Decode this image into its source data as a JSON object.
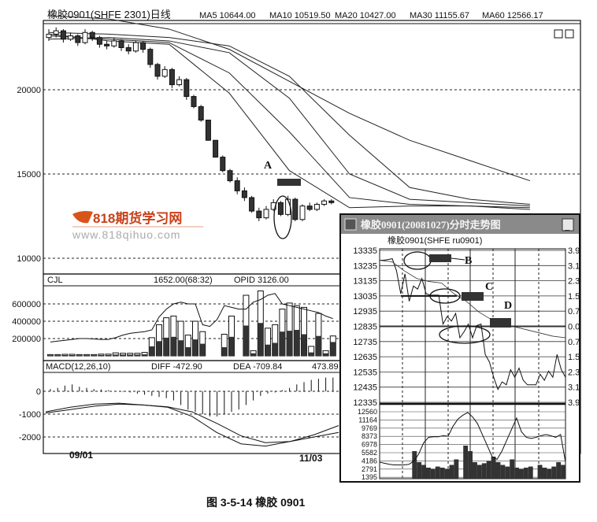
{
  "main": {
    "title": "橡胶0901(SHFE 2301)日线",
    "ma_labels": [
      "MA5 10644.00",
      "MA10 10519.50",
      "MA20 10427.00",
      "MA30 11155.67",
      "MA60  12566.17"
    ],
    "price_ticks": [
      20000,
      15000,
      10000
    ],
    "candles": [
      [
        23100,
        23600,
        22900,
        23300
      ],
      [
        23300,
        23700,
        23100,
        23500
      ],
      [
        23500,
        23600,
        22800,
        23000
      ],
      [
        23000,
        23400,
        22900,
        23200
      ],
      [
        23200,
        23300,
        22600,
        22800
      ],
      [
        22800,
        23600,
        22700,
        23400
      ],
      [
        23400,
        23500,
        22900,
        23100
      ],
      [
        23100,
        23200,
        22500,
        22700
      ],
      [
        22700,
        22900,
        22400,
        22600
      ],
      [
        22600,
        23100,
        22500,
        22900
      ],
      [
        22900,
        23000,
        22300,
        22500
      ],
      [
        22500,
        22700,
        22100,
        22300
      ],
      [
        22300,
        22900,
        22200,
        22800
      ],
      [
        22800,
        22900,
        22200,
        22400
      ],
      [
        22400,
        22500,
        21300,
        21500
      ],
      [
        21500,
        21600,
        20600,
        20800
      ],
      [
        20800,
        21400,
        20700,
        21200
      ],
      [
        21200,
        21300,
        20100,
        20300
      ],
      [
        20300,
        20800,
        20200,
        20600
      ],
      [
        20600,
        20700,
        19400,
        19600
      ],
      [
        19600,
        19700,
        18900,
        19000
      ],
      [
        19000,
        19100,
        18100,
        18200
      ],
      [
        18200,
        18200,
        17000,
        17000
      ],
      [
        17000,
        17000,
        16000,
        16000
      ],
      [
        16000,
        16100,
        15100,
        15200
      ],
      [
        15200,
        15300,
        14500,
        14600
      ],
      [
        14600,
        14800,
        13800,
        14000
      ],
      [
        14000,
        14200,
        13400,
        13600
      ],
      [
        13600,
        13700,
        12700,
        12800
      ],
      [
        12800,
        13000,
        12200,
        12400
      ],
      [
        12400,
        13100,
        12300,
        12900
      ],
      [
        12900,
        13500,
        12800,
        13300
      ],
      [
        13300,
        13400,
        12500,
        12600
      ],
      [
        12600,
        13700,
        12500,
        13500
      ],
      [
        13500,
        13600,
        12200,
        12300
      ],
      [
        12300,
        13200,
        12200,
        13100
      ],
      [
        13100,
        13300,
        12800,
        12900
      ],
      [
        12900,
        13300,
        12800,
        13200
      ],
      [
        13200,
        13500,
        13100,
        13400
      ],
      [
        13400,
        13500,
        13200,
        13300
      ]
    ],
    "ma_series": [
      {
        "name": "MA5",
        "values": [
          23300,
          22900,
          22700,
          19800,
          15200,
          13000,
          13100,
          13100,
          12900,
          12600
        ]
      },
      {
        "name": "MA10",
        "values": [
          23200,
          23000,
          22800,
          21000,
          17500,
          13600,
          13200,
          13100,
          13000,
          12700
        ]
      },
      {
        "name": "MA20",
        "values": [
          23000,
          23100,
          22900,
          22200,
          19500,
          15000,
          13500,
          13300,
          13100,
          12800
        ]
      },
      {
        "name": "MA30",
        "values": [
          23400,
          23300,
          23100,
          22600,
          20800,
          17300,
          14200,
          13500,
          13200,
          12900
        ]
      },
      {
        "name": "MA60",
        "values": [
          24400,
          24200,
          23600,
          22400,
          20500,
          18600,
          17000,
          15800,
          14600,
          13500
        ]
      }
    ],
    "annotation_A": "A"
  },
  "volume": {
    "label": "CJL",
    "value_text": "1652.00(68:32)",
    "oi_text": "OPID  3126.00",
    "ticks": [
      "600000",
      "400000",
      "200000"
    ],
    "tick_values": [
      600000,
      400000,
      200000
    ],
    "bars": [
      [
        15000,
        8000
      ],
      [
        15000,
        8000
      ],
      [
        18000,
        9000
      ],
      [
        18000,
        9000
      ],
      [
        15000,
        8000
      ],
      [
        15000,
        8000
      ],
      [
        15000,
        8000
      ],
      [
        20000,
        10000
      ],
      [
        20000,
        10000
      ],
      [
        35000,
        15000
      ],
      [
        30000,
        15000
      ],
      [
        30000,
        15000
      ],
      [
        30000,
        15000
      ],
      [
        40000,
        18000
      ],
      [
        210000,
        110000
      ],
      [
        360000,
        170000
      ],
      [
        440000,
        210000
      ],
      [
        460000,
        220000
      ],
      [
        400000,
        180000
      ],
      [
        240000,
        100000
      ],
      [
        400000,
        190000
      ],
      [
        280000,
        140000
      ],
      [
        0,
        0
      ],
      [
        0,
        0
      ],
      [
        250000,
        100000
      ],
      [
        460000,
        220000
      ],
      [
        0,
        0
      ],
      [
        700000,
        350000
      ],
      [
        60000,
        30000
      ],
      [
        750000,
        380000
      ],
      [
        320000,
        130000
      ],
      [
        360000,
        150000
      ],
      [
        540000,
        280000
      ],
      [
        610000,
        290000
      ],
      [
        580000,
        300000
      ],
      [
        560000,
        250000
      ],
      [
        110000,
        40000
      ],
      [
        490000,
        230000
      ],
      [
        60000,
        30000
      ],
      [
        230000,
        160000
      ]
    ],
    "oi_line": [
      160000,
      170000,
      180000,
      190000,
      200000,
      200000,
      195000,
      190000,
      190000,
      210000,
      240000,
      260000,
      270000,
      280000,
      300000,
      450000,
      540000,
      600000,
      620000,
      600000,
      600000,
      360000,
      340000,
      420000,
      580000,
      560000,
      540000,
      540000,
      620000,
      650000,
      700000,
      720000,
      600000,
      580000,
      560000,
      540000,
      520000,
      500000,
      460000,
      430000
    ]
  },
  "macd": {
    "label": "MACD(12,26,10)",
    "diff_text": "DIFF  -472.90",
    "dea_text": "DEA  -709.84",
    "macd_text": "473.89",
    "ticks": [
      "0",
      "-1000",
      "-2000"
    ],
    "tick_values": [
      0,
      -1000,
      -2000
    ],
    "diff": [
      -900,
      -700,
      -560,
      -520,
      -600,
      -700,
      -1100,
      -1800,
      -2300,
      -2400,
      -2200,
      -1900,
      -1500
    ],
    "dea": [
      -950,
      -800,
      -650,
      -560,
      -600,
      -680,
      -900,
      -1400,
      -1950,
      -2250,
      -2200,
      -2000,
      -1800
    ],
    "hist": [
      100,
      150,
      250,
      300,
      200,
      150,
      100,
      80,
      50,
      20,
      -20,
      -50,
      -100,
      -150,
      -200,
      -250,
      -300,
      -400,
      -600,
      -800,
      -900,
      -1000,
      -1100,
      -1100,
      -1000,
      -900,
      -800,
      -600,
      -400,
      -200,
      -100,
      -50,
      50,
      150,
      300,
      400,
      500,
      550,
      600,
      600
    ]
  },
  "dates": [
    "09/01",
    "11/03"
  ],
  "inset": {
    "window_title": "橡胶0901(20081027)分时走势图",
    "minimize_label": "_",
    "subtitle": "橡胶0901(SHFE ru0901)",
    "price_ticks": [
      "13335",
      "13235",
      "13135",
      "13035",
      "12935",
      "12835",
      "12735",
      "12635",
      "12535",
      "12435",
      "12335"
    ],
    "price_tick_values": [
      13335,
      13235,
      13135,
      13035,
      12935,
      12835,
      12735,
      12635,
      12535,
      12435,
      12335
    ],
    "pct_ticks": [
      "3.9",
      "3.1",
      "2.3",
      "1.5",
      "0.7",
      "0.0",
      "0.7",
      "1.5",
      "2.3",
      "3.1",
      "3.9"
    ],
    "volume_ticks": [
      "12560",
      "11164",
      "9769",
      "8373",
      "6978",
      "5582",
      "4186",
      "2791",
      "1395"
    ],
    "price": [
      13270,
      13270,
      13275,
      13280,
      13200,
      13050,
      13180,
      13000,
      13100,
      13080,
      13150,
      13050,
      13040,
      13040,
      13040,
      12850,
      12900,
      12870,
      12920,
      12760,
      12800,
      12850,
      12760,
      12840,
      12850,
      12650,
      12600,
      12500,
      12420,
      12470,
      12450,
      12550,
      12500,
      12560,
      12480,
      12450,
      12450,
      12450,
      12520,
      12480,
      12540,
      12500,
      12650,
      12550,
      12500
    ],
    "avg": [
      13270,
      13260,
      13200,
      13150,
      13130,
      13120,
      13050,
      13000,
      12930,
      12880,
      12840,
      12830,
      12810,
      12790,
      12770,
      12760
    ],
    "vol_bars": [
      0,
      0,
      0,
      0,
      0,
      0,
      0,
      5000,
      3000,
      2500,
      2000,
      1800,
      2200,
      2000,
      1800,
      2500,
      3500,
      0,
      6000,
      5000,
      3000,
      2500,
      2800,
      3200,
      4000,
      3000,
      2500,
      2200,
      3500,
      2000,
      1800,
      2000,
      2200,
      0,
      2500,
      2000,
      1800,
      2200,
      3000,
      2500
    ],
    "vol_line": [
      3000,
      2800,
      2600,
      2500,
      2500,
      2500,
      2600,
      3200,
      4500,
      6500,
      7500,
      7600,
      7600,
      7800,
      7700,
      9500,
      10800,
      11500,
      12000,
      11200,
      10000,
      8000,
      6000,
      4000,
      3500,
      5000,
      7000,
      9000,
      11000,
      8500,
      7500,
      7300,
      7500,
      7800,
      8000,
      7800,
      7500,
      8000,
      3000
    ],
    "label_B": "B",
    "label_C": "C",
    "label_D": "D"
  },
  "watermark": {
    "brand": "818期货学习网",
    "url": "www.818qihuo.com"
  },
  "caption": "图 3-5-14   橡胶 0901"
}
